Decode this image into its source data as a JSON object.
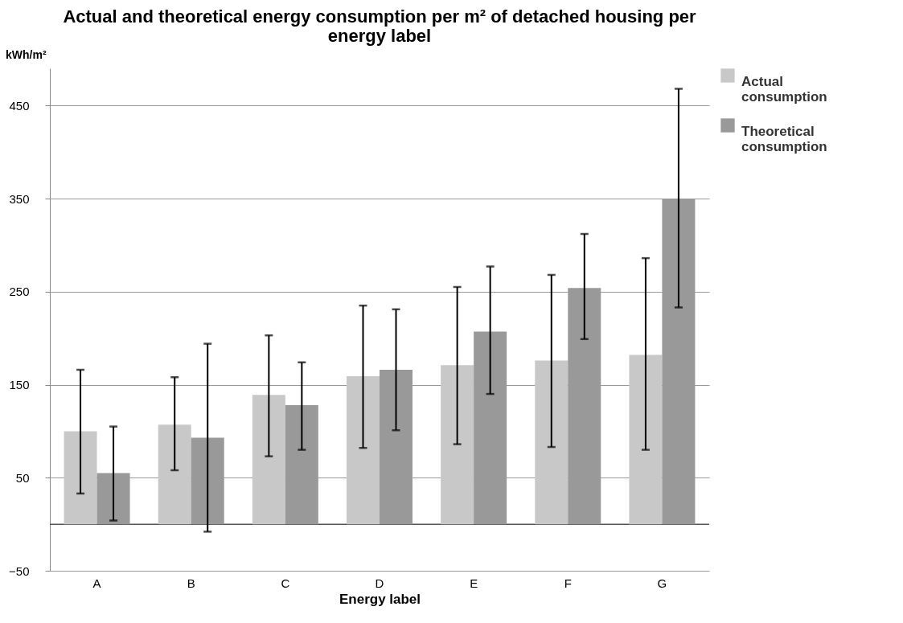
{
  "chart_data": {
    "type": "bar",
    "title": "Actual and theoretical energy consumption per m² of detached housing per energy label",
    "xlabel": "Energy label",
    "ylabel": "kWh/m²",
    "categories": [
      "A",
      "B",
      "C",
      "D",
      "E",
      "F",
      "G"
    ],
    "series": [
      {
        "name": "Actual consumption",
        "color": "#c8c8c8",
        "values": [
          100,
          107,
          139,
          159,
          171,
          176,
          182
        ],
        "errors": [
          [
            33,
            166
          ],
          [
            58,
            158
          ],
          [
            73,
            203
          ],
          [
            82,
            235
          ],
          [
            86,
            255
          ],
          [
            83,
            268
          ],
          [
            80,
            286
          ]
        ]
      },
      {
        "name": "Theoretical consumption",
        "color": "#999999",
        "values": [
          55,
          93,
          128,
          166,
          207,
          254,
          350
        ],
        "errors": [
          [
            4,
            105
          ],
          [
            -8,
            194
          ],
          [
            80,
            174
          ],
          [
            101,
            231
          ],
          [
            140,
            277
          ],
          [
            199,
            312
          ],
          [
            233,
            468
          ]
        ]
      }
    ],
    "ylim": [
      -50,
      490
    ],
    "yticks": [
      -50,
      50,
      150,
      250,
      350,
      450
    ],
    "grid": "y",
    "legend": "right",
    "ref_lines": [
      {
        "axis": "y",
        "value": 0,
        "color": "#555555"
      }
    ]
  }
}
